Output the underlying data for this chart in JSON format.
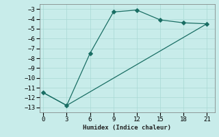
{
  "title": "",
  "xlabel": "Humidex (Indice chaleur)",
  "bg_color": "#c8ecea",
  "grid_color": "#a8d8d4",
  "line_color": "#1a6e64",
  "line1_x": [
    0,
    3,
    6,
    9,
    12,
    15,
    18,
    21
  ],
  "line1_y": [
    -11.5,
    -12.8,
    -7.5,
    -3.3,
    -3.1,
    -4.1,
    -4.4,
    -4.5
  ],
  "line2_x": [
    0,
    3,
    21
  ],
  "line2_y": [
    -11.5,
    -12.8,
    -4.5
  ],
  "xlim": [
    -0.5,
    22
  ],
  "ylim": [
    -13.5,
    -2.5
  ],
  "xticks": [
    0,
    3,
    6,
    9,
    12,
    15,
    18,
    21
  ],
  "yticks": [
    -13,
    -12,
    -11,
    -10,
    -9,
    -8,
    -7,
    -6,
    -5,
    -4,
    -3
  ]
}
